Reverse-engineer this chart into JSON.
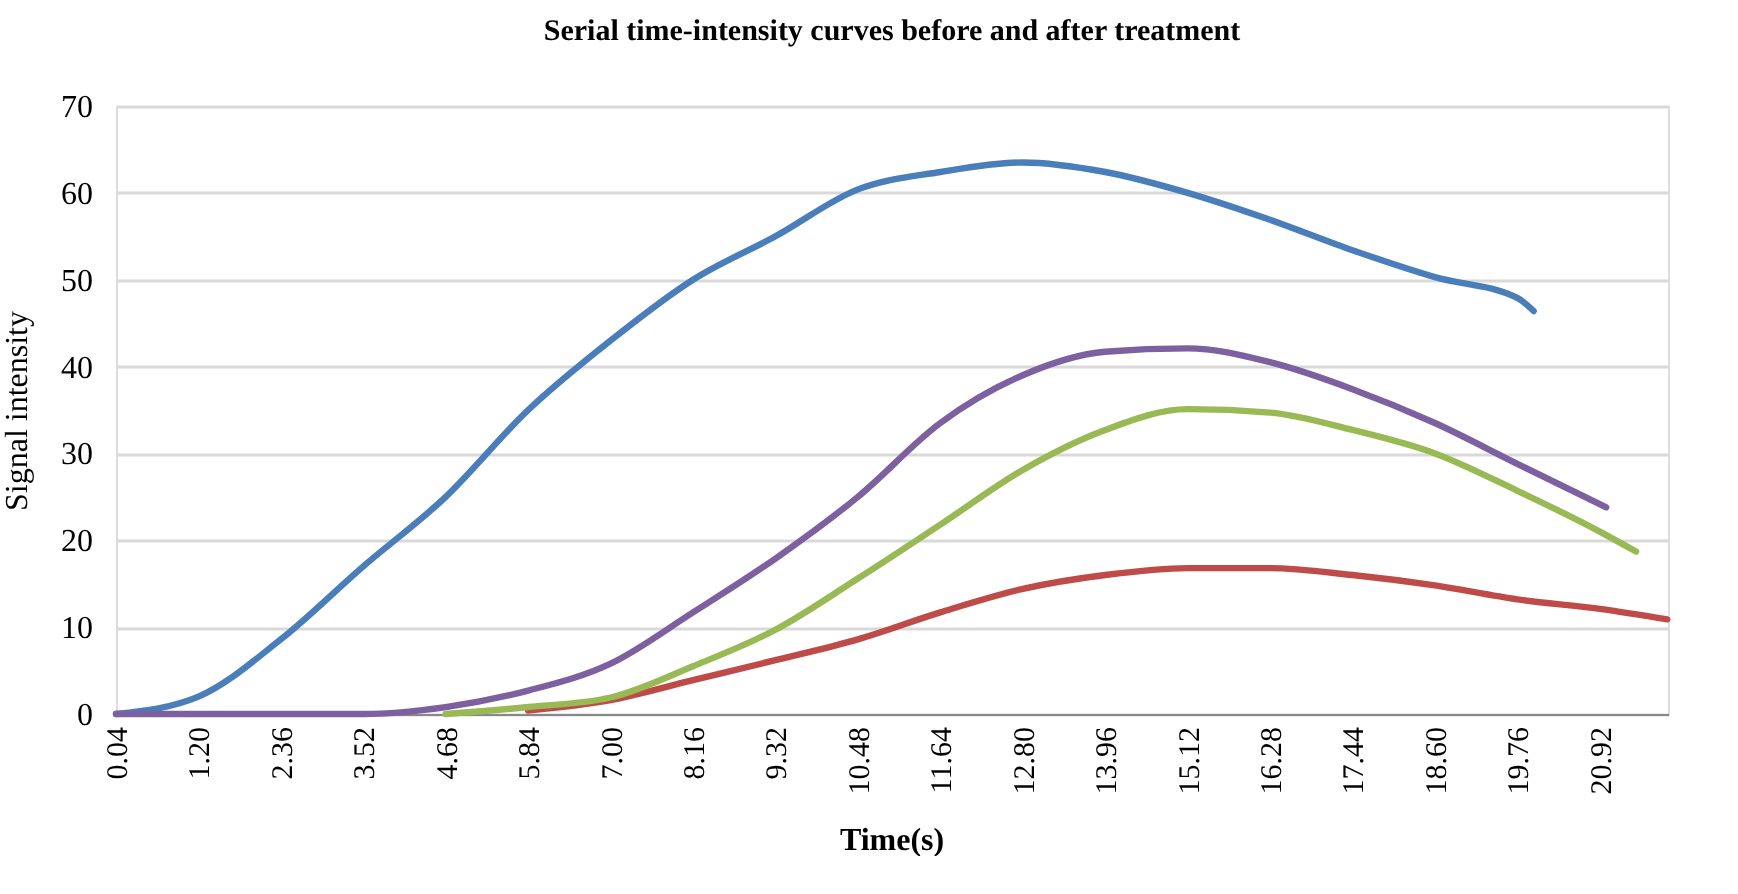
{
  "chart_data": {
    "type": "line",
    "title": "Serial time-intensity curves before and after treatment",
    "xlabel": "Time(s)",
    "ylabel": "Signal intensity",
    "xlim": [
      0.04,
      21.88
    ],
    "xticks": [
      0.04,
      {
        "value": 1.2,
        "label": "1.20"
      },
      2.36,
      3.52,
      4.68,
      5.84,
      {
        "value": 7.0,
        "label": "7.00"
      },
      8.16,
      9.32,
      10.48,
      11.64,
      {
        "value": 12.8,
        "label": "12.80"
      },
      13.96,
      15.12,
      16.28,
      17.44,
      {
        "value": 18.6,
        "label": "18.60"
      },
      19.76,
      20.92
    ],
    "ylim": [
      0,
      70
    ],
    "yticks": [
      0,
      10,
      20,
      30,
      40,
      50,
      60,
      70
    ],
    "grid": "y",
    "marker": "none",
    "line_style": "solid",
    "series": [
      {
        "color": "#4a7ebb",
        "x": [
          0.04,
          1.2,
          2.36,
          3.52,
          4.68,
          5.84,
          7.0,
          8.16,
          9.32,
          10.48,
          11.64,
          12.8,
          13.96,
          15.12,
          16.28,
          17.44,
          18.6,
          19.76,
          19.99
        ],
        "values": [
          0,
          2,
          8.6,
          17,
          25,
          35,
          43,
          50,
          55,
          60.4,
          62.4,
          63.5,
          62.4,
          60,
          56.9,
          53.4,
          50.3,
          47.9,
          46.4
        ]
      },
      {
        "color": "#be4b48",
        "x": [
          5.84,
          7.0,
          8.16,
          9.32,
          10.48,
          11.64,
          12.8,
          13.96,
          15.12,
          16.28,
          17.44,
          18.6,
          19.76,
          20.92,
          21.87
        ],
        "values": [
          0.4,
          1.6,
          3.9,
          6.2,
          8.6,
          11.7,
          14.4,
          16,
          16.8,
          16.8,
          16,
          14.8,
          13.2,
          12.1,
          10.9
        ]
      },
      {
        "color": "#98b954",
        "x": [
          4.68,
          5.84,
          7.0,
          8.16,
          9.32,
          10.48,
          11.64,
          12.8,
          13.96,
          15.12,
          16.28,
          17.44,
          18.6,
          19.76,
          20.92,
          21.43
        ],
        "values": [
          0,
          0.8,
          1.9,
          5.5,
          9.7,
          15.6,
          21.8,
          28.1,
          32.7,
          35.1,
          34.7,
          32.7,
          30,
          25.7,
          21,
          18.7
        ]
      },
      {
        "color": "#7d60a0",
        "x": [
          0.04,
          3.52,
          4.68,
          5.84,
          7.0,
          8.16,
          9.32,
          10.48,
          11.64,
          12.8,
          13.96,
          15.12,
          16.28,
          17.44,
          18.6,
          19.76,
          21.01
        ],
        "values": [
          0,
          0,
          0.8,
          2.7,
          5.8,
          11.7,
          17.9,
          25,
          33.5,
          39,
          41.7,
          42.1,
          40.5,
          37.4,
          33.5,
          28.8,
          23.8
        ]
      }
    ]
  }
}
